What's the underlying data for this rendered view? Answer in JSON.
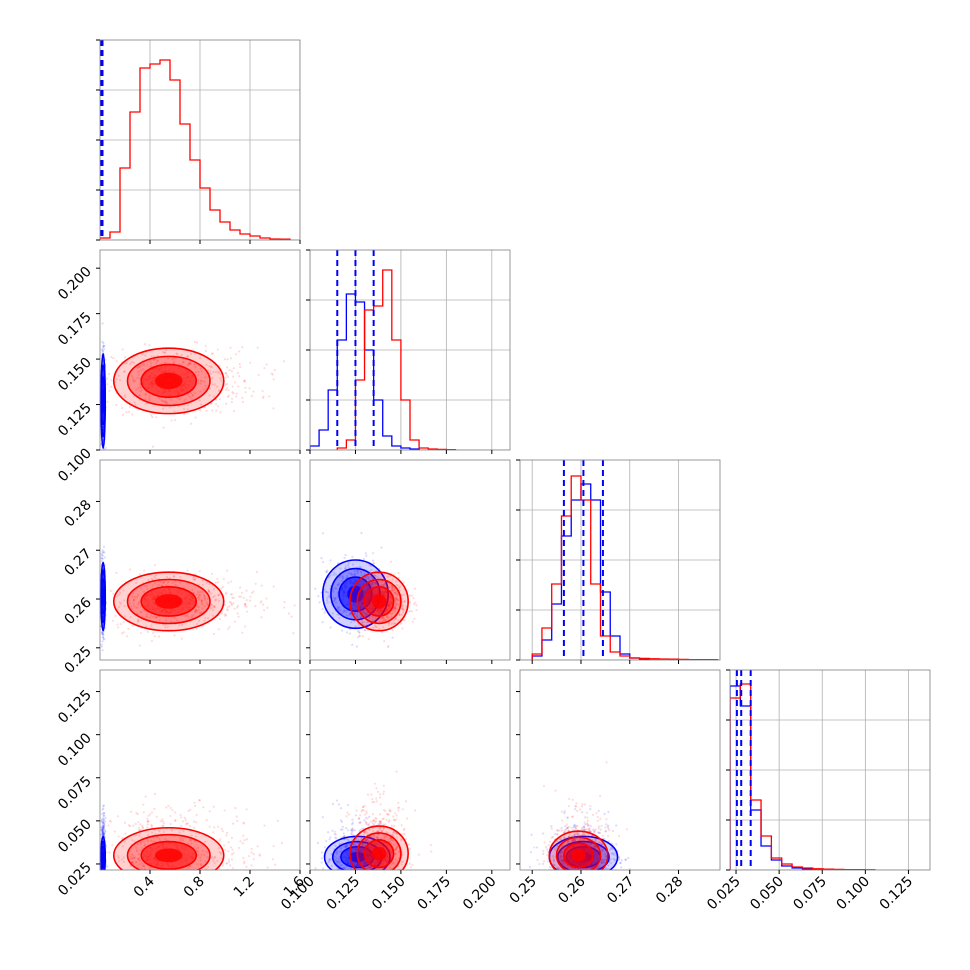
{
  "chart_data": {
    "type": "corner",
    "colors": {
      "model_a": "#0000ff",
      "model_b": "#ff0000",
      "grid": "#b0b0b0",
      "frame": "#808080"
    },
    "parameters": [
      {
        "range": [
          0.0,
          1.6
        ],
        "ticks": [
          "0.4",
          "0.8",
          "1.2",
          "1.6"
        ],
        "tick_values": [
          0.4,
          0.8,
          1.2,
          1.6
        ]
      },
      {
        "range": [
          0.1,
          0.21
        ],
        "ticks": [
          "0.100",
          "0.125",
          "0.150",
          "0.175",
          "0.200"
        ],
        "tick_values": [
          0.1,
          0.125,
          0.15,
          0.175,
          0.2
        ]
      },
      {
        "range": [
          0.2475,
          0.2885
        ],
        "ticks": [
          "0.25",
          "0.26",
          "0.27",
          "0.28"
        ],
        "tick_values": [
          0.25,
          0.26,
          0.27,
          0.28
        ]
      },
      {
        "range": [
          0.0215,
          0.1375
        ],
        "ticks": [
          "0.025",
          "0.050",
          "0.075",
          "0.100",
          "0.125"
        ],
        "tick_values": [
          0.025,
          0.05,
          0.075,
          0.1,
          0.125
        ]
      }
    ],
    "marginals": [
      {
        "blue_quantiles": [
          0.005,
          0.01,
          0.02
        ],
        "red": {
          "edges": [
            0.0,
            0.08,
            0.16,
            0.24,
            0.32,
            0.4,
            0.48,
            0.56,
            0.64,
            0.72,
            0.8,
            0.88,
            0.96,
            1.04,
            1.12,
            1.2,
            1.28,
            1.36,
            1.44,
            1.52
          ],
          "counts": [
            0.01,
            0.04,
            0.36,
            0.64,
            0.86,
            0.88,
            0.9,
            0.8,
            0.58,
            0.4,
            0.26,
            0.15,
            0.09,
            0.05,
            0.03,
            0.02,
            0.01,
            0.005,
            0.004
          ]
        }
      },
      {
        "blue_quantiles": [
          0.115,
          0.125,
          0.135
        ],
        "blue": {
          "edges": [
            0.1,
            0.105,
            0.11,
            0.115,
            0.12,
            0.125,
            0.13,
            0.135,
            0.14,
            0.145,
            0.15,
            0.155,
            0.16
          ],
          "counts": [
            0.02,
            0.1,
            0.3,
            0.55,
            0.78,
            0.74,
            0.5,
            0.25,
            0.07,
            0.02,
            0.01,
            0.005
          ]
        },
        "red": {
          "edges": [
            0.115,
            0.12,
            0.125,
            0.13,
            0.135,
            0.14,
            0.145,
            0.15,
            0.155,
            0.16,
            0.165,
            0.17,
            0.175,
            0.18
          ],
          "counts": [
            0.01,
            0.05,
            0.35,
            0.7,
            0.72,
            0.9,
            0.55,
            0.25,
            0.05,
            0.01,
            0.005,
            0.003,
            0.002
          ]
        }
      },
      {
        "blue_quantiles": [
          0.2565,
          0.2605,
          0.2645
        ],
        "blue": {
          "edges": [
            0.25,
            0.252,
            0.254,
            0.256,
            0.258,
            0.26,
            0.262,
            0.264,
            0.266,
            0.268,
            0.27,
            0.272,
            0.274
          ],
          "counts": [
            0.02,
            0.1,
            0.28,
            0.62,
            0.8,
            0.88,
            0.8,
            0.34,
            0.12,
            0.03,
            0.01,
            0.005
          ]
        },
        "red": {
          "edges": [
            0.25,
            0.252,
            0.254,
            0.256,
            0.258,
            0.26,
            0.262,
            0.264,
            0.266,
            0.268,
            0.27,
            0.272,
            0.274,
            0.276,
            0.278,
            0.28,
            0.282,
            0.284,
            0.286,
            0.288
          ],
          "counts": [
            0.03,
            0.16,
            0.38,
            0.72,
            0.92,
            0.8,
            0.38,
            0.12,
            0.04,
            0.02,
            0.01,
            0.008,
            0.006,
            0.005,
            0.004,
            0.003,
            0.002,
            0.002,
            0.002
          ]
        }
      },
      {
        "blue_quantiles": [
          0.0255,
          0.028,
          0.0335
        ],
        "blue": {
          "edges": [
            0.0215,
            0.0275,
            0.0335,
            0.0395,
            0.0455,
            0.0515,
            0.0575,
            0.0635,
            0.0695,
            0.0755
          ],
          "counts": [
            0.92,
            0.82,
            0.3,
            0.12,
            0.05,
            0.02,
            0.01,
            0.005,
            0.002
          ]
        },
        "red": {
          "edges": [
            0.0215,
            0.0275,
            0.0335,
            0.0395,
            0.0455,
            0.0515,
            0.0575,
            0.0635,
            0.0695,
            0.0755,
            0.0815,
            0.0875,
            0.0935,
            0.0995,
            0.1055
          ],
          "counts": [
            0.86,
            0.93,
            0.35,
            0.17,
            0.06,
            0.03,
            0.015,
            0.01,
            0.006,
            0.004,
            0.003,
            0.002,
            0.002,
            0.001
          ]
        }
      }
    ],
    "joints": [
      {
        "row": 1,
        "col": 0,
        "blue": {
          "center": [
            0.025,
            0.127
          ],
          "spread": [
            0.008,
            0.013
          ]
        },
        "red": {
          "center": [
            0.55,
            0.138
          ],
          "spread": [
            0.22,
            0.009
          ]
        }
      },
      {
        "row": 2,
        "col": 0,
        "blue": {
          "center": [
            0.025,
            0.2605
          ],
          "spread": [
            0.008,
            0.0035
          ]
        },
        "red": {
          "center": [
            0.55,
            0.2595
          ],
          "spread": [
            0.22,
            0.003
          ]
        }
      },
      {
        "row": 2,
        "col": 1,
        "blue": {
          "center": [
            0.125,
            0.261
          ],
          "spread": [
            0.009,
            0.0035
          ]
        },
        "red": {
          "center": [
            0.138,
            0.2595
          ],
          "spread": [
            0.008,
            0.003
          ]
        }
      },
      {
        "row": 3,
        "col": 0,
        "blue": {
          "center": [
            0.025,
            0.029
          ],
          "spread": [
            0.008,
            0.006
          ]
        },
        "red": {
          "center": [
            0.55,
            0.03
          ],
          "spread": [
            0.22,
            0.008
          ]
        }
      },
      {
        "row": 3,
        "col": 1,
        "blue": {
          "center": [
            0.126,
            0.029
          ],
          "spread": [
            0.009,
            0.006
          ]
        },
        "red": {
          "center": [
            0.138,
            0.031
          ],
          "spread": [
            0.008,
            0.008
          ]
        }
      },
      {
        "row": 3,
        "col": 2,
        "blue": {
          "center": [
            0.2605,
            0.029
          ],
          "spread": [
            0.0035,
            0.006
          ]
        },
        "red": {
          "center": [
            0.2595,
            0.03
          ],
          "spread": [
            0.003,
            0.007
          ]
        }
      }
    ]
  }
}
